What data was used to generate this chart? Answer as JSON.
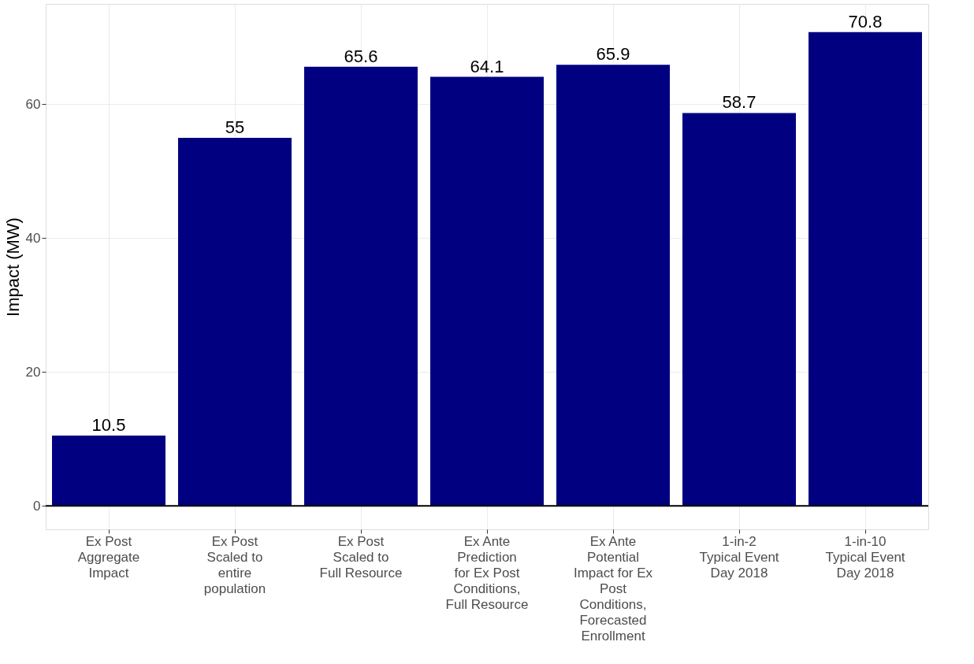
{
  "chart_data": {
    "type": "bar",
    "ylabel": "Impact (MW)",
    "categories": [
      "Ex Post Aggregate Impact",
      "Ex Post Scaled to entire population",
      "Ex Post Scaled to Full Resource",
      "Ex Ante Prediction for Ex Post Conditions, Full Resource",
      "Ex Ante Potential Impact for Ex Post Conditions, Forecasted Enrollment",
      "1-in-2 Typical Event Day 2018",
      "1-in-10 Typical Event Day 2018"
    ],
    "values": [
      10.5,
      55,
      65.6,
      64.1,
      65.9,
      58.7,
      70.8
    ],
    "color": "#000080",
    "data_labels": true,
    "ylim": [
      -3.5,
      75
    ],
    "yticks": [
      0,
      20,
      40,
      60
    ],
    "grid": true,
    "ref_lines": [
      {
        "axis": "y",
        "value": 0,
        "color": "#000000"
      }
    ]
  }
}
